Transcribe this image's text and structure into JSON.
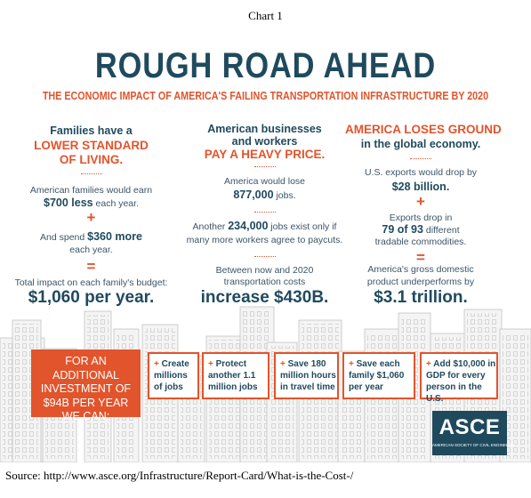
{
  "caption": "Chart 1",
  "title": "ROUGH ROAD AHEAD",
  "subtitle": "THE ECONOMIC IMPACT OF AMERICA'S FAILING TRANSPORTATION INFRASTRUCTURE BY 2020",
  "columns": [
    {
      "lines": [
        "Families have a",
        "LOWER STANDARD",
        "OF LIVING.",
        "American families would earn",
        [
          "$700 less",
          "each year."
        ],
        "+",
        [
          "And spend",
          "$360 more"
        ],
        "each year.",
        "=",
        "Total impact on each family's budget:",
        "$1,060 per year."
      ]
    },
    {
      "lines": [
        "American businesses",
        "and workers",
        "PAY A HEAVY PRICE.",
        "America would lose",
        [
          "877,000",
          "jobs."
        ],
        [
          "Another",
          "234,000",
          "jobs exist only if"
        ],
        "many more workers agree to paycuts.",
        "Between now and 2020",
        "transportation costs",
        "increase $430B."
      ]
    },
    {
      "lines": [
        "AMERICA LOSES GROUND",
        "in the global economy.",
        "U.S. exports would drop by",
        "$28 billion.",
        "+",
        "Exports drop in",
        [
          "79 of 93",
          "different"
        ],
        "tradable commodities.",
        "=",
        "America's gross domestic",
        "product underperforms by",
        "$3.1 trillion."
      ]
    }
  ],
  "investment": [
    "FOR AN ADDITIONAL",
    "INVESTMENT OF",
    "$94B PER YEAR",
    "WE CAN:"
  ],
  "action_marker": "+",
  "actions": [
    [
      "Create",
      "millions",
      "of jobs"
    ],
    [
      "Protect",
      "another 1.1",
      "million jobs"
    ],
    [
      "Save 180",
      "million hours",
      "in travel time"
    ],
    [
      "Save each",
      "family $1,060",
      "per year"
    ],
    [
      "Add $10,000 in",
      "GDP for every",
      "person in the U.S."
    ]
  ],
  "logo": {
    "name": "ASCE",
    "full_name": "AMERICAN SOCIETY OF CIVIL ENGINEERS"
  },
  "source": "Source: http://www.asce.org/Infrastructure/Report-Card/What-is-the-Cost-/"
}
